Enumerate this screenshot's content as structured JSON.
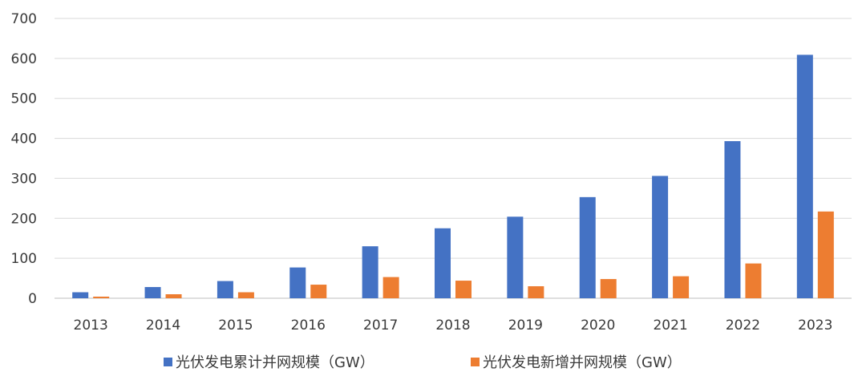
{
  "chart_data": {
    "type": "bar",
    "title": "",
    "xlabel": "",
    "ylabel": "",
    "categories": [
      "2013",
      "2014",
      "2015",
      "2016",
      "2017",
      "2018",
      "2019",
      "2020",
      "2021",
      "2022",
      "2023"
    ],
    "ylim": [
      0,
      700
    ],
    "yticks": [
      0,
      100,
      200,
      300,
      400,
      500,
      600,
      700
    ],
    "grid": true,
    "legend_position": "bottom",
    "series": [
      {
        "name": "光伏发电累计并网规模（GW）",
        "color": "#4472C4",
        "values": [
          15,
          28,
          43,
          77,
          130,
          175,
          204,
          253,
          306,
          393,
          609
        ]
      },
      {
        "name": "光伏发电新增并网规模（GW）",
        "color": "#ED7D31",
        "values": [
          4,
          10,
          15,
          34,
          53,
          44,
          30,
          48,
          55,
          87,
          217
        ]
      }
    ]
  }
}
